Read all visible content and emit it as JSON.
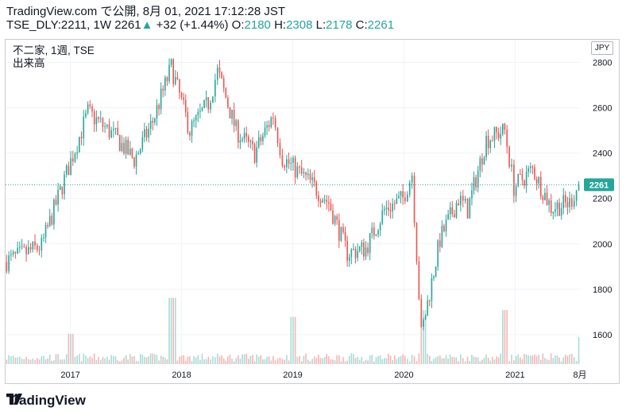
{
  "header": {
    "line1": "TradingView.com で公開, 8月 01, 2021 17:12:28 JST",
    "symbol_interval": "TSE_DLY:2211, 1W",
    "last": "2261",
    "change_arrow": "▲",
    "change": "+32 (+1.44%)",
    "o_label": "O:",
    "o_value": "2180",
    "h_label": "H:",
    "h_value": "2308",
    "l_label": "L:",
    "l_value": "2178",
    "c_label": "C:",
    "c_value": "2261"
  },
  "legend": {
    "title": "不二家, 1週, TSE",
    "volume_label": "出来高"
  },
  "currency_label": "JPY",
  "last_price_label": "2261",
  "brand": "TradingView",
  "colors": {
    "up": "#26a69a",
    "down": "#ef5350",
    "vol_up": "#a8dcd6",
    "vol_down": "#f8b5b4",
    "grid": "#f0f3fa",
    "last_line": "#26a69a"
  },
  "chart_data": {
    "type": "candlestick",
    "x_ticks": [
      "2017",
      "2018",
      "2019",
      "2020",
      "2021",
      "8月"
    ],
    "y_ticks": [
      2800,
      2600,
      2400,
      2200,
      2000,
      1800,
      1600
    ],
    "ylim": [
      1470,
      2900
    ],
    "last_price": 2261,
    "series": [
      {
        "start": "2016-06",
        "end": "2016-10",
        "open": 1920,
        "close": 1990
      },
      {
        "start": "2016-10",
        "end": "2016-12",
        "open": 1990,
        "close": 2230
      },
      {
        "start": "2016-12",
        "end": "2017-03",
        "open": 2230,
        "close": 2580
      },
      {
        "start": "2017-03",
        "end": "2017-06",
        "open": 2580,
        "close": 2470
      },
      {
        "start": "2017-06",
        "end": "2017-08",
        "open": 2470,
        "close": 2370
      },
      {
        "start": "2017-08",
        "end": "2017-10",
        "open": 2370,
        "close": 2540
      },
      {
        "start": "2017-10",
        "end": "2017-12",
        "open": 2540,
        "close": 2780
      },
      {
        "start": "2017-12",
        "end": "2018-02",
        "open": 2780,
        "close": 2500
      },
      {
        "start": "2018-02",
        "end": "2018-04",
        "open": 2500,
        "close": 2620
      },
      {
        "start": "2018-04",
        "end": "2018-05",
        "open": 2620,
        "close": 2760
      },
      {
        "start": "2018-05",
        "end": "2018-07",
        "open": 2760,
        "close": 2500
      },
      {
        "start": "2018-07",
        "end": "2018-09",
        "open": 2500,
        "close": 2400
      },
      {
        "start": "2018-09",
        "end": "2018-11",
        "open": 2400,
        "close": 2570
      },
      {
        "start": "2018-11",
        "end": "2018-12",
        "open": 2570,
        "close": 2380
      },
      {
        "start": "2018-12",
        "end": "2019-03",
        "open": 2380,
        "close": 2270
      },
      {
        "start": "2019-03",
        "end": "2019-05",
        "open": 2270,
        "close": 2180
      },
      {
        "start": "2019-05",
        "end": "2019-07",
        "open": 2180,
        "close": 1960
      },
      {
        "start": "2019-07",
        "end": "2019-09",
        "open": 1960,
        "close": 1980
      },
      {
        "start": "2019-09",
        "end": "2019-11",
        "open": 1980,
        "close": 2150
      },
      {
        "start": "2019-11",
        "end": "2020-01",
        "open": 2150,
        "close": 2200
      },
      {
        "start": "2020-01",
        "end": "2020-02",
        "open": 2200,
        "close": 2310
      },
      {
        "start": "2020-02",
        "end": "2020-03",
        "open": 2310,
        "close": 1600
      },
      {
        "start": "2020-03",
        "end": "2020-05",
        "open": 1600,
        "close": 2020
      },
      {
        "start": "2020-05",
        "end": "2020-07",
        "open": 2020,
        "close": 2200
      },
      {
        "start": "2020-07",
        "end": "2020-08",
        "open": 2200,
        "close": 2150
      },
      {
        "start": "2020-08",
        "end": "2020-10",
        "open": 2150,
        "close": 2460
      },
      {
        "start": "2020-10",
        "end": "2020-12",
        "open": 2460,
        "close": 2500
      },
      {
        "start": "2020-12",
        "end": "2021-01",
        "open": 2500,
        "close": 2250
      },
      {
        "start": "2021-01",
        "end": "2021-03",
        "open": 2250,
        "close": 2330
      },
      {
        "start": "2021-03",
        "end": "2021-05",
        "open": 2330,
        "close": 2160
      },
      {
        "start": "2021-05",
        "end": "2021-07",
        "open": 2160,
        "close": 2180
      },
      {
        "start": "2021-07",
        "end": "2021-08",
        "open": 2180,
        "close": 2261
      }
    ],
    "volume": [
      {
        "date": "2017-01",
        "value": 0.45,
        "dir": "down"
      },
      {
        "date": "2017-12",
        "value": 0.98,
        "dir": "down"
      },
      {
        "date": "2019-01",
        "value": 0.7,
        "dir": "down"
      },
      {
        "date": "2020-03",
        "value": 0.8,
        "dir": "up"
      },
      {
        "date": "2020-12",
        "value": 0.8,
        "dir": "down"
      },
      {
        "date": "2021-08",
        "value": 0.4,
        "dir": "up"
      }
    ]
  }
}
